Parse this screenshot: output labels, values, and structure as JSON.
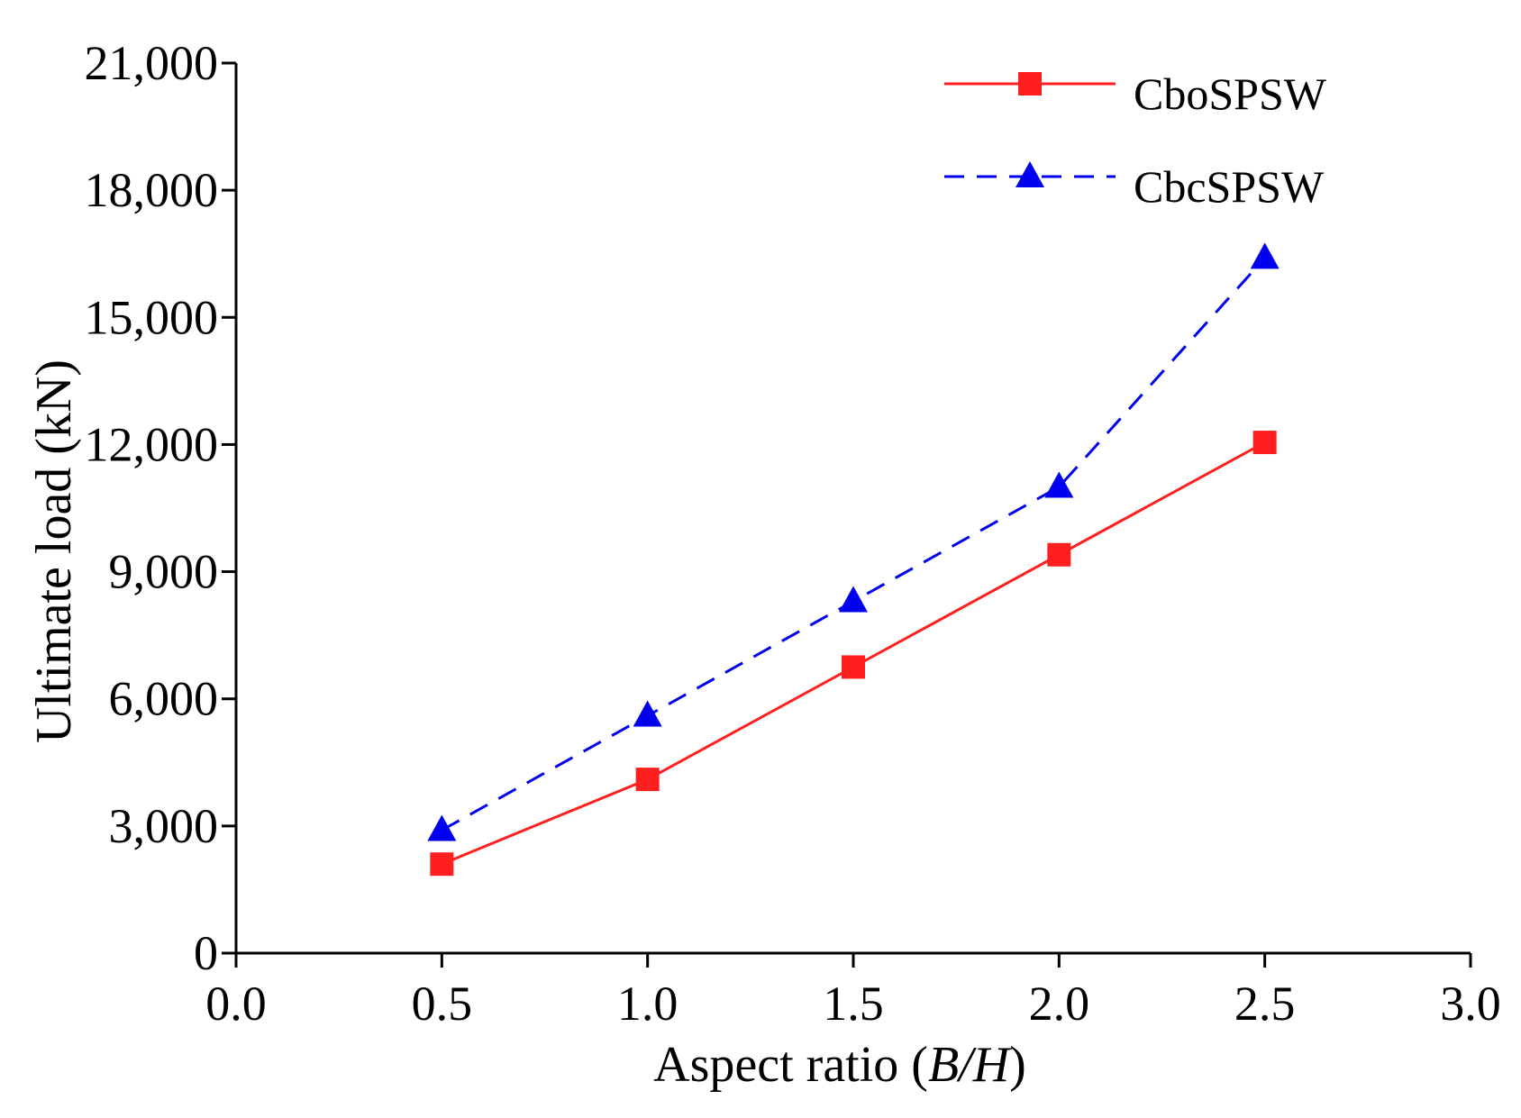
{
  "chart_data": {
    "type": "line",
    "title": "",
    "xlabel_prefix": "Aspect ratio (",
    "xlabel_var": "B/H",
    "xlabel_suffix": ")",
    "xlabel": "Aspect ratio (B/H)",
    "ylabel": "Ultimate load (kN)",
    "xlim": [
      0.0,
      3.0
    ],
    "ylim": [
      0,
      21000
    ],
    "grid": false,
    "legend_position": "top-right",
    "x_ticks": [
      {
        "value": 0.0,
        "label": "0.0"
      },
      {
        "value": 0.5,
        "label": "0.5"
      },
      {
        "value": 1.0,
        "label": "1.0"
      },
      {
        "value": 1.5,
        "label": "1.5"
      },
      {
        "value": 2.0,
        "label": "2.0"
      },
      {
        "value": 2.5,
        "label": "2.5"
      },
      {
        "value": 3.0,
        "label": "3.0"
      }
    ],
    "y_ticks": [
      {
        "value": 0,
        "label": "0"
      },
      {
        "value": 3000,
        "label": "3,000"
      },
      {
        "value": 6000,
        "label": "6,000"
      },
      {
        "value": 9000,
        "label": "9,000"
      },
      {
        "value": 12000,
        "label": "12,000"
      },
      {
        "value": 15000,
        "label": "15,000"
      },
      {
        "value": 18000,
        "label": "18,000"
      },
      {
        "value": 21000,
        "label": "21,000"
      }
    ],
    "x": [
      0.5,
      1.0,
      1.5,
      2.0,
      2.5
    ],
    "series": [
      {
        "name": "CboSPSW",
        "color": "#ff1f1f",
        "line_style": "solid",
        "marker": "square",
        "values": [
          2100,
          4100,
          6750,
          9400,
          12050
        ]
      },
      {
        "name": "CbcSPSW",
        "color": "#0000ee",
        "line_style": "dashed",
        "marker": "triangle",
        "values": [
          2900,
          5600,
          8300,
          11000,
          16400
        ]
      }
    ]
  }
}
